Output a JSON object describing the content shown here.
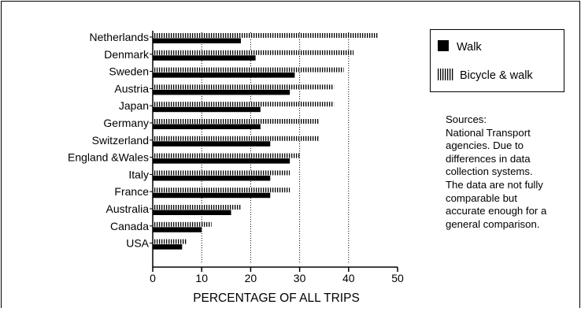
{
  "chart_data": {
    "type": "bar",
    "orientation": "horizontal",
    "categories": [
      "Netherlands",
      "Denmark",
      "Sweden",
      "Austria",
      "Japan",
      "Germany",
      "Switzerland",
      "England &Wales",
      "Italy",
      "France",
      "Australia",
      "Canada",
      "USA"
    ],
    "series": [
      {
        "name": "Walk",
        "values": [
          18,
          21,
          29,
          28,
          22,
          22,
          24,
          28,
          24,
          24,
          16,
          10,
          6
        ],
        "color": "#000000",
        "pattern": "solid"
      },
      {
        "name": "Bicycle & walk",
        "values": [
          46,
          41,
          39,
          37,
          37,
          34,
          34,
          30,
          28,
          28,
          18,
          12,
          7
        ],
        "color": "#000000",
        "pattern": "vertical-hatch"
      }
    ],
    "xlabel": "PERCENTAGE OF ALL TRIPS",
    "xlim": [
      0,
      50
    ],
    "xticks": [
      "0",
      "10",
      "20",
      "30",
      "40",
      "50"
    ],
    "grid": "vertical dotted at 10, 20, 30, 40",
    "legend_position": "right"
  },
  "sources": {
    "lines": [
      "Sources:",
      "National Transport",
      "agencies. Due to",
      "differences in data",
      "collection systems.",
      "The data are not fully",
      "comparable but",
      "accurate enough for a",
      "general comparison."
    ]
  }
}
